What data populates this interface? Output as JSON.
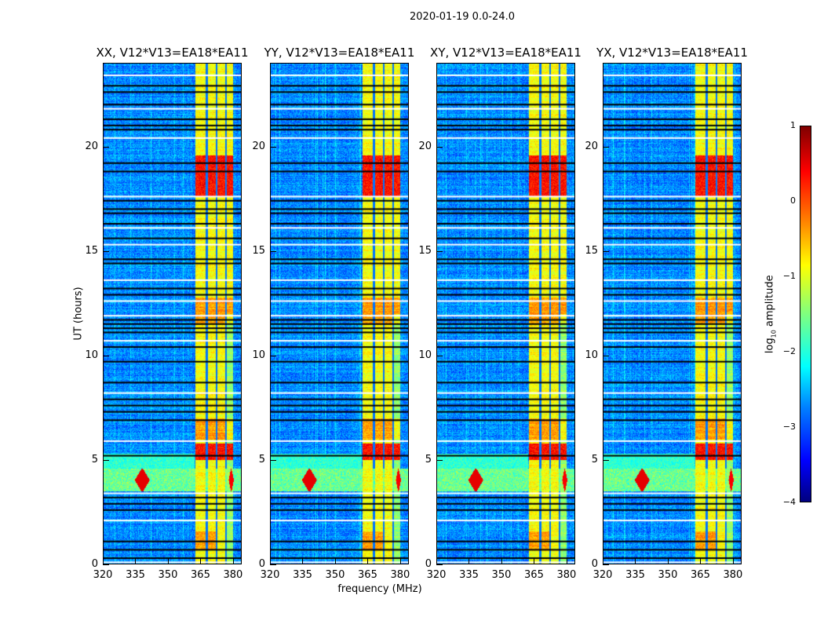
{
  "suptitle": "2020-01-19 0.0-24.0",
  "chart_data": {
    "type": "heatmap",
    "xlabel": "frequency (MHz)",
    "ylabel": "UT (hours)",
    "xlim": [
      320,
      384
    ],
    "ylim": [
      0,
      24
    ],
    "xticks": [
      "320",
      "335",
      "350",
      "365",
      "380"
    ],
    "yticks": [
      "0",
      "5",
      "10",
      "15",
      "20"
    ],
    "colorbar": {
      "label": "log10 amplitude",
      "label_main": "log",
      "label_sub": "10",
      "label_tail": " amplitude",
      "range": [
        -4,
        1
      ],
      "ticks": [
        "1",
        "0",
        "−1",
        "−2",
        "−3",
        "−4"
      ],
      "colormap": "jet"
    },
    "panels": [
      {
        "title": "XX, V12*V13=EA18*EA11",
        "seed": 1
      },
      {
        "title": "YY, V12*V13=EA18*EA11",
        "seed": 2
      },
      {
        "title": "XY, V12*V13=EA18*EA11",
        "seed": 3
      },
      {
        "title": "YX, V12*V13=EA18*EA11",
        "seed": 4
      }
    ],
    "background_level": -2.7,
    "rfi_band_mhz": [
      362.5,
      380
    ],
    "rfi_band_level": -0.9,
    "strong_rfi_hours": [
      [
        17.6,
        19.6
      ],
      [
        5.0,
        5.8
      ]
    ],
    "broadband_event_hours": [
      3.5,
      4.6
    ],
    "flagged_hours_black": [
      0.3,
      0.7,
      1.1,
      2.6,
      2.9,
      3.2,
      5.2,
      6.9,
      7.3,
      7.6,
      7.9,
      8.7,
      9.7,
      10.4,
      11.1,
      11.3,
      11.5,
      11.7,
      12.9,
      13.2,
      14.4,
      14.6,
      15.6,
      16.3,
      16.8,
      17.0,
      17.4,
      18.8,
      19.2,
      20.8,
      21.0,
      21.3,
      22.0,
      22.6,
      22.9
    ],
    "flagged_hours_white": [
      0.1,
      2.1,
      3.4,
      5.9,
      8.2,
      10.7,
      11.9,
      12.6,
      13.6,
      15.3,
      16.1,
      17.6,
      20.4,
      21.8,
      23.4
    ]
  }
}
